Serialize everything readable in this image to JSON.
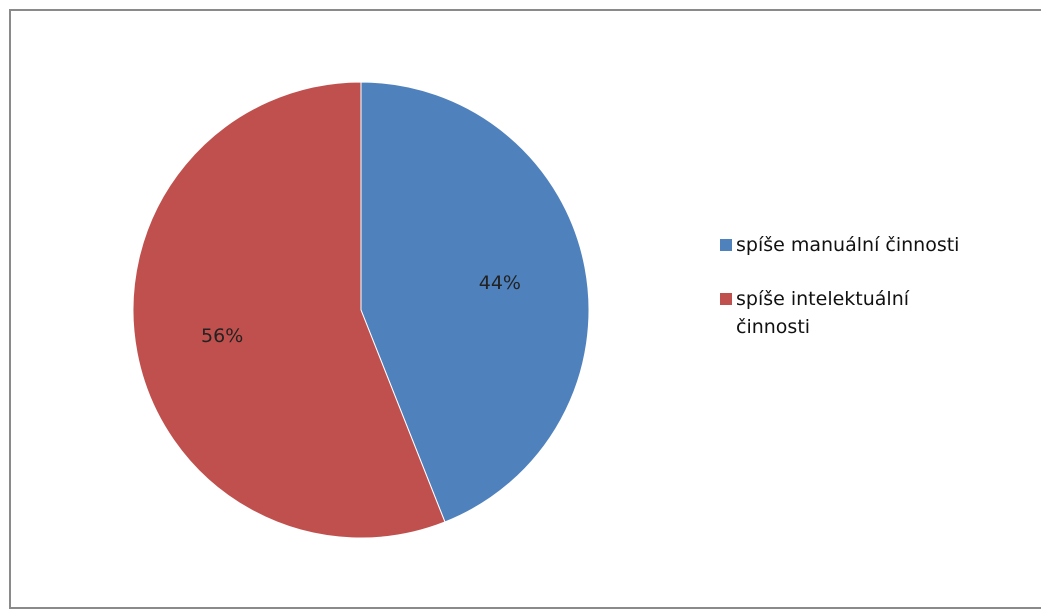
{
  "chart_data": {
    "type": "pie",
    "title": "",
    "slices": [
      {
        "name": "spíše manuální činnosti",
        "value": 44,
        "label": "44%",
        "color": "#4F81BD"
      },
      {
        "name": "spíše intelektuální činnosti",
        "value": 56,
        "label": "56%",
        "color": "#C0504D"
      }
    ],
    "start_angle": "12 o'clock",
    "direction": "clockwise",
    "legend_position": "right"
  }
}
